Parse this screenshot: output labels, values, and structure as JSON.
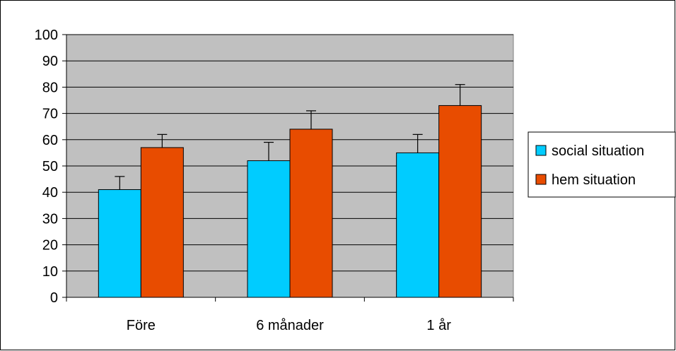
{
  "chart_data": {
    "type": "bar",
    "title": "",
    "xlabel": "",
    "ylabel": "",
    "categories": [
      "Före",
      "6 månader",
      "1 år"
    ],
    "ylim": [
      0,
      100
    ],
    "yticks": [
      "0",
      "10",
      "20",
      "30",
      "40",
      "50",
      "60",
      "70",
      "80",
      "90",
      "100"
    ],
    "grid": true,
    "legend_position": "right",
    "series": [
      {
        "name": "social situation",
        "color": "#00ccff",
        "values": [
          41,
          52,
          55
        ],
        "error_upper": [
          46,
          59,
          62
        ]
      },
      {
        "name": "hem situation",
        "color": "#e84c00",
        "values": [
          57,
          64,
          73
        ],
        "error_upper": [
          62,
          71,
          81
        ]
      }
    ],
    "plot_background": "#c0c0c0",
    "gridline_color": "#000000"
  }
}
